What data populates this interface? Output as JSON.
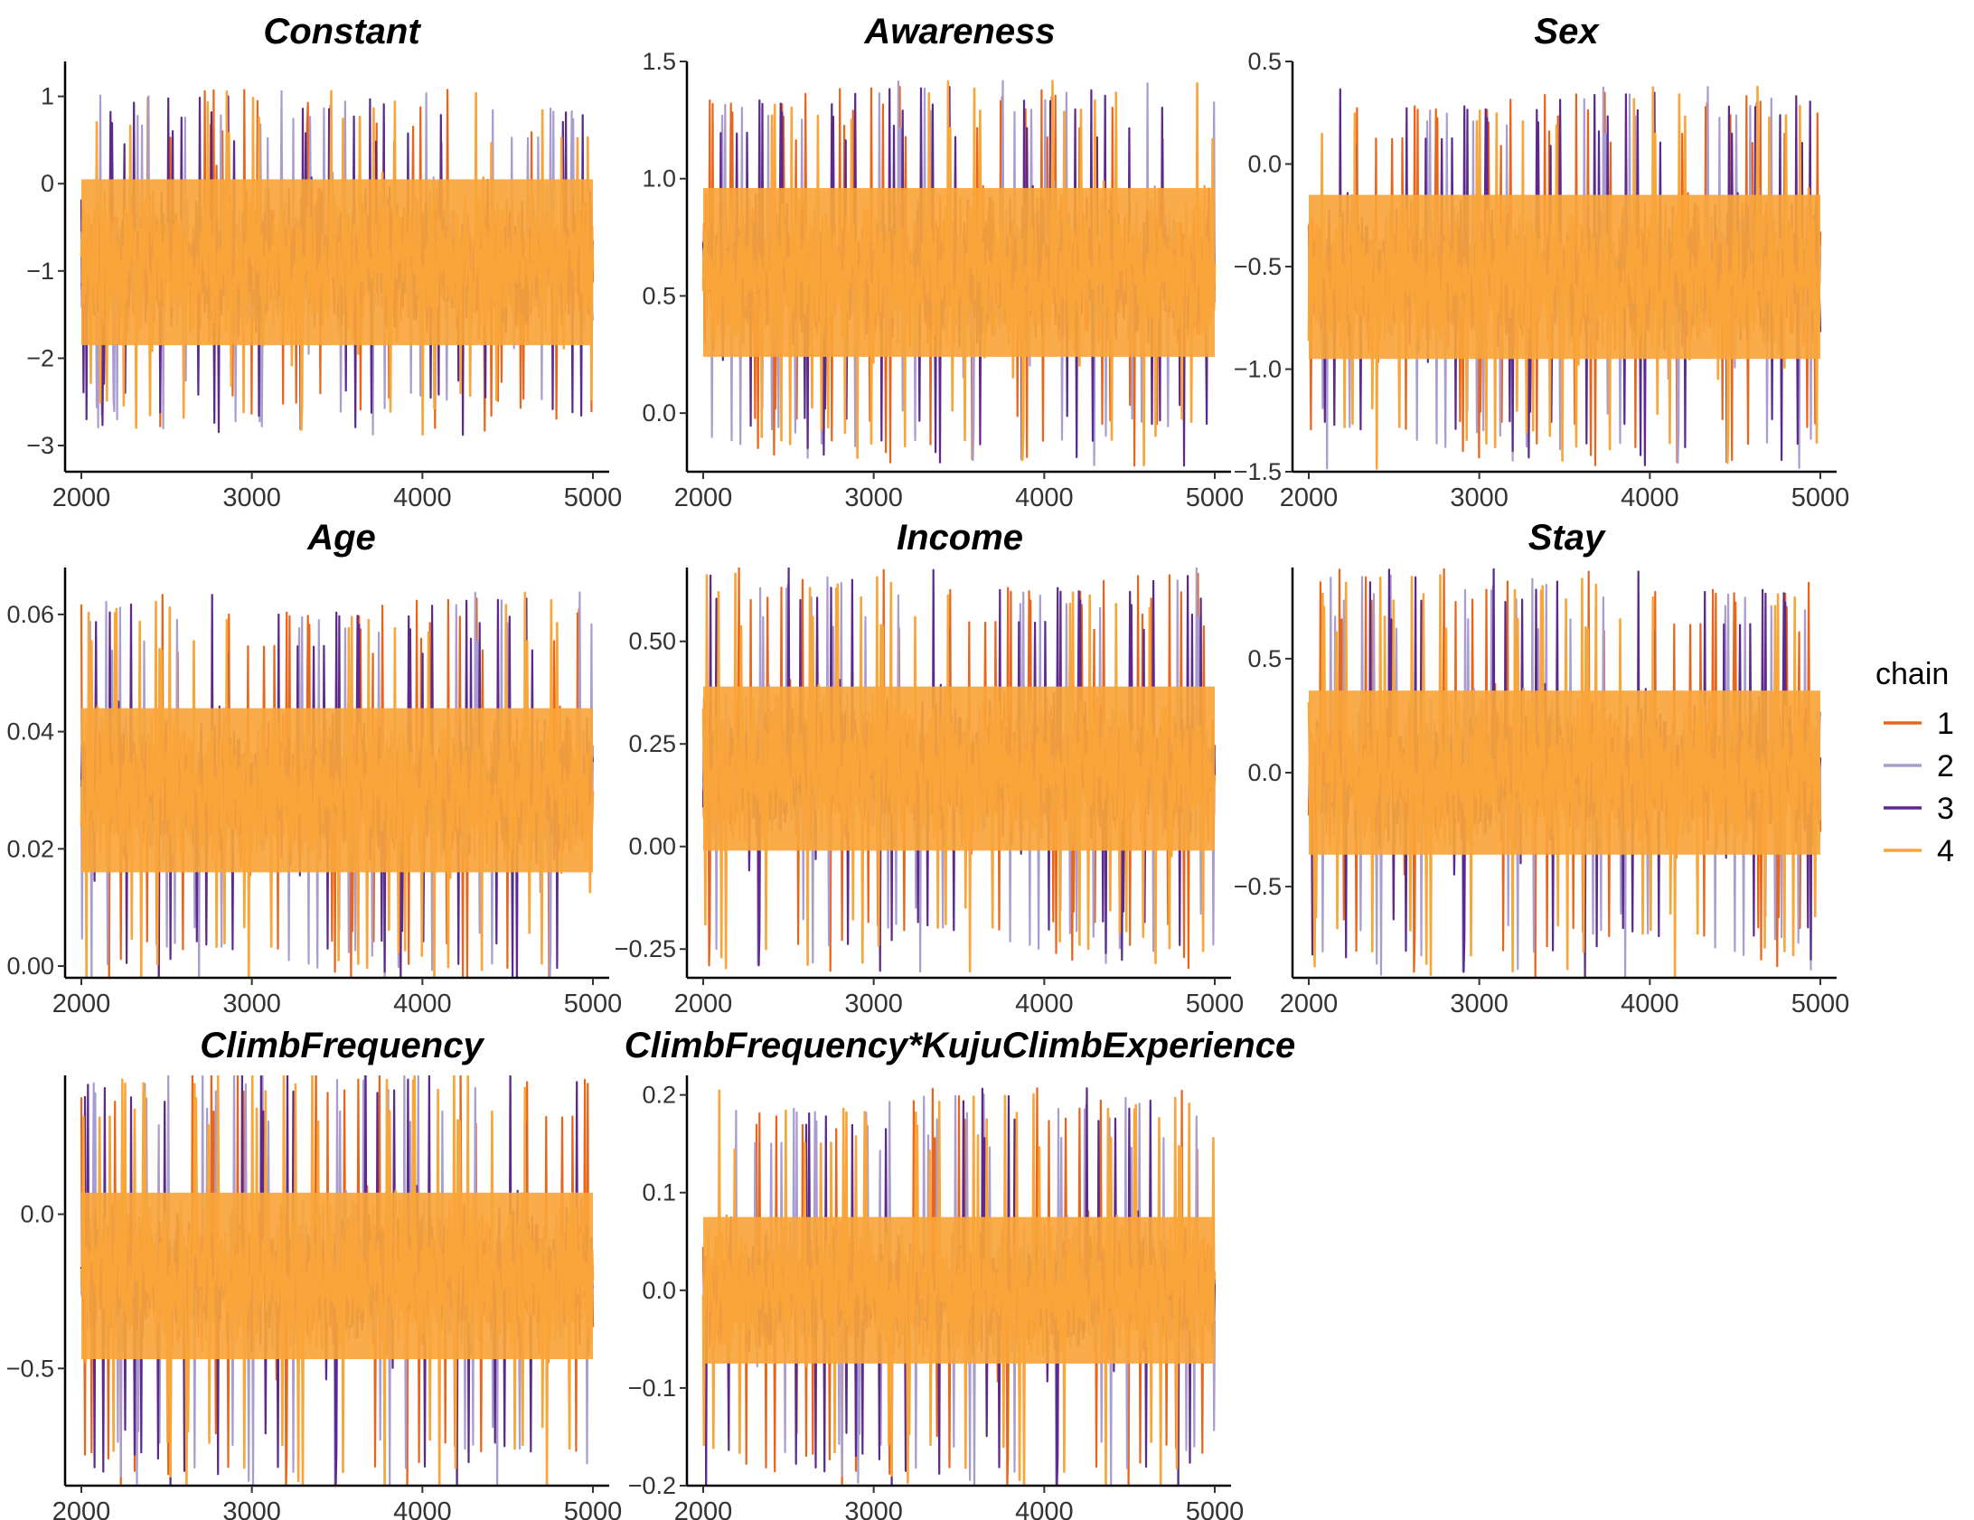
{
  "chart_data": {
    "type": "line",
    "description_title": "",
    "legend": {
      "title": "chain",
      "placement": "right",
      "entries": [
        {
          "name": "1",
          "color": "#e8661b"
        },
        {
          "name": "2",
          "color": "#a99dd0"
        },
        {
          "name": "3",
          "color": "#5c2a8d"
        },
        {
          "name": "4",
          "color": "#f8a53a"
        }
      ]
    },
    "x_range": [
      2000,
      5000
    ],
    "panels": [
      {
        "title": "Constant",
        "ylim": [
          -3.3,
          1.4
        ],
        "yticks": [
          1,
          0,
          -1,
          -2,
          -3
        ],
        "ytick_labels": [
          "1",
          "0",
          "−1",
          "−2",
          "−3"
        ],
        "xticks": [
          2000,
          3000,
          4000,
          5000
        ],
        "center": -0.9,
        "core_half": 0.95,
        "spike": 1.8
      },
      {
        "title": "Awareness",
        "ylim": [
          -0.25,
          1.5
        ],
        "yticks": [
          1.5,
          1.0,
          0.5,
          0.0
        ],
        "ytick_labels": [
          "1.5",
          "1.0",
          "0.5",
          "0.0"
        ],
        "xticks": [
          2000,
          3000,
          4000,
          5000
        ],
        "center": 0.6,
        "core_half": 0.36,
        "spike": 0.75
      },
      {
        "title": "Sex",
        "ylim": [
          -1.5,
          0.5
        ],
        "yticks": [
          0.5,
          0.0,
          -0.5,
          -1.0,
          -1.5
        ],
        "ytick_labels": [
          "0.5",
          "0.0",
          "−0.5",
          "−1.0",
          "−1.5"
        ],
        "xticks": [
          2000,
          3000,
          4000,
          5000
        ],
        "center": -0.55,
        "core_half": 0.4,
        "spike": 0.85
      },
      {
        "title": "Age",
        "ylim": [
          -0.002,
          0.068
        ],
        "yticks": [
          0.06,
          0.04,
          0.02,
          0.0
        ],
        "ytick_labels": [
          "0.06",
          "0.04",
          "0.02",
          "0.00"
        ],
        "xticks": [
          2000,
          3000,
          4000,
          5000
        ],
        "center": 0.03,
        "core_half": 0.014,
        "spike": 0.031
      },
      {
        "title": "Income",
        "ylim": [
          -0.32,
          0.68
        ],
        "yticks": [
          0.5,
          0.25,
          0.0,
          -0.25
        ],
        "ytick_labels": [
          "0.50",
          "0.25",
          "0.00",
          "−0.25"
        ],
        "xticks": [
          2000,
          3000,
          4000,
          5000
        ],
        "center": 0.19,
        "core_half": 0.2,
        "spike": 0.45
      },
      {
        "title": "Stay",
        "ylim": [
          -0.9,
          0.9
        ],
        "yticks": [
          0.5,
          0.0,
          -0.5
        ],
        "ytick_labels": [
          "0.5",
          "0.0",
          "−0.5"
        ],
        "xticks": [
          2000,
          3000,
          4000,
          5000
        ],
        "center": 0.0,
        "core_half": 0.36,
        "spike": 0.82
      },
      {
        "title": "ClimbFrequency",
        "ylim": [
          -0.88,
          0.45
        ],
        "yticks": [
          0.0,
          -0.5
        ],
        "ytick_labels": [
          "0.0",
          "−0.5"
        ],
        "xticks": [
          2000,
          3000,
          4000,
          5000
        ],
        "center": -0.2,
        "core_half": 0.27,
        "spike": 0.65
      },
      {
        "title": "ClimbFrequency*KujuClimbExperience",
        "ylim": [
          -0.2,
          0.22
        ],
        "yticks": [
          0.2,
          0.1,
          0.0,
          -0.1,
          -0.2
        ],
        "ytick_labels": [
          "0.2",
          "0.1",
          "0.0",
          "−0.1",
          "−0.2"
        ],
        "xticks": [
          2000,
          3000,
          4000,
          5000
        ],
        "center": 0.0,
        "core_half": 0.075,
        "spike": 0.19
      }
    ]
  }
}
